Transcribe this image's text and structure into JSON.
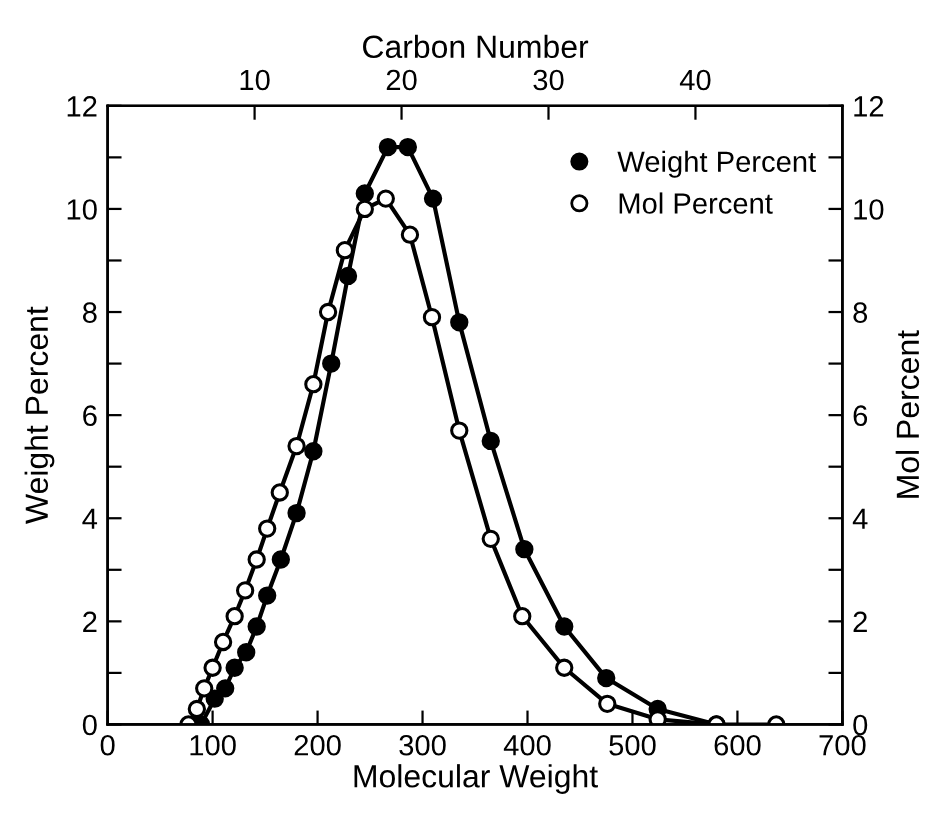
{
  "chart_data": {
    "type": "line",
    "xlabel": "Molecular Weight",
    "ylabel": "Weight Percent",
    "y2label": "Mol Percent",
    "x2label": "Carbon Number",
    "xlim": [
      0,
      700
    ],
    "xticks": [
      0,
      100,
      200,
      300,
      400,
      500,
      600,
      700
    ],
    "x2lim": [
      0,
      50
    ],
    "x2ticks": [
      10,
      20,
      30,
      40
    ],
    "ylim": [
      0,
      12
    ],
    "yticks": [
      0,
      {
        "value": 1,
        "label": null
      },
      2,
      {
        "value": 3,
        "label": null
      },
      4,
      {
        "value": 5,
        "label": null
      },
      6,
      {
        "value": 7,
        "label": null
      },
      8,
      {
        "value": 9,
        "label": null
      },
      10,
      {
        "value": 11,
        "label": null
      },
      12
    ],
    "y2lim": [
      0,
      12
    ],
    "y2ticks": [
      0,
      {
        "value": 1,
        "label": null
      },
      2,
      {
        "value": 3,
        "label": null
      },
      4,
      {
        "value": 5,
        "label": null
      },
      6,
      {
        "value": 7,
        "label": null
      },
      8,
      {
        "value": 9,
        "label": null
      },
      10,
      {
        "value": 11,
        "label": null
      },
      12
    ],
    "marker": "circle",
    "line_style": "solid",
    "legend": "top right",
    "grid": false,
    "series": [
      {
        "name": "Weight Percent",
        "color": "#000000",
        "x": [
          89,
          102,
          112,
          121,
          132,
          142,
          152,
          165,
          180,
          196,
          213,
          229,
          245,
          267,
          286,
          310,
          335,
          365,
          397,
          435,
          475,
          524,
          580
        ],
        "values": [
          0.0,
          0.5,
          0.7,
          1.1,
          1.4,
          1.9,
          2.5,
          3.2,
          4.1,
          5.3,
          7.0,
          8.7,
          10.3,
          11.2,
          11.2,
          10.2,
          7.8,
          5.5,
          3.4,
          1.9,
          0.9,
          0.3,
          0.0
        ]
      },
      {
        "name": "Mol Percent",
        "color": "#000000",
        "axis": "y2",
        "x": [
          77,
          85,
          92,
          100,
          110,
          121,
          131,
          142,
          152,
          164,
          180,
          196,
          210,
          226,
          245,
          265,
          288,
          309,
          335,
          365,
          395,
          435,
          476,
          524,
          580,
          637
        ],
        "values": [
          0.0,
          0.3,
          0.7,
          1.1,
          1.6,
          2.1,
          2.6,
          3.2,
          3.8,
          4.5,
          5.4,
          6.6,
          8.0,
          9.2,
          10.0,
          10.2,
          9.5,
          7.9,
          5.7,
          3.6,
          2.1,
          1.1,
          0.4,
          0.1,
          0.0,
          0.0
        ]
      }
    ]
  }
}
